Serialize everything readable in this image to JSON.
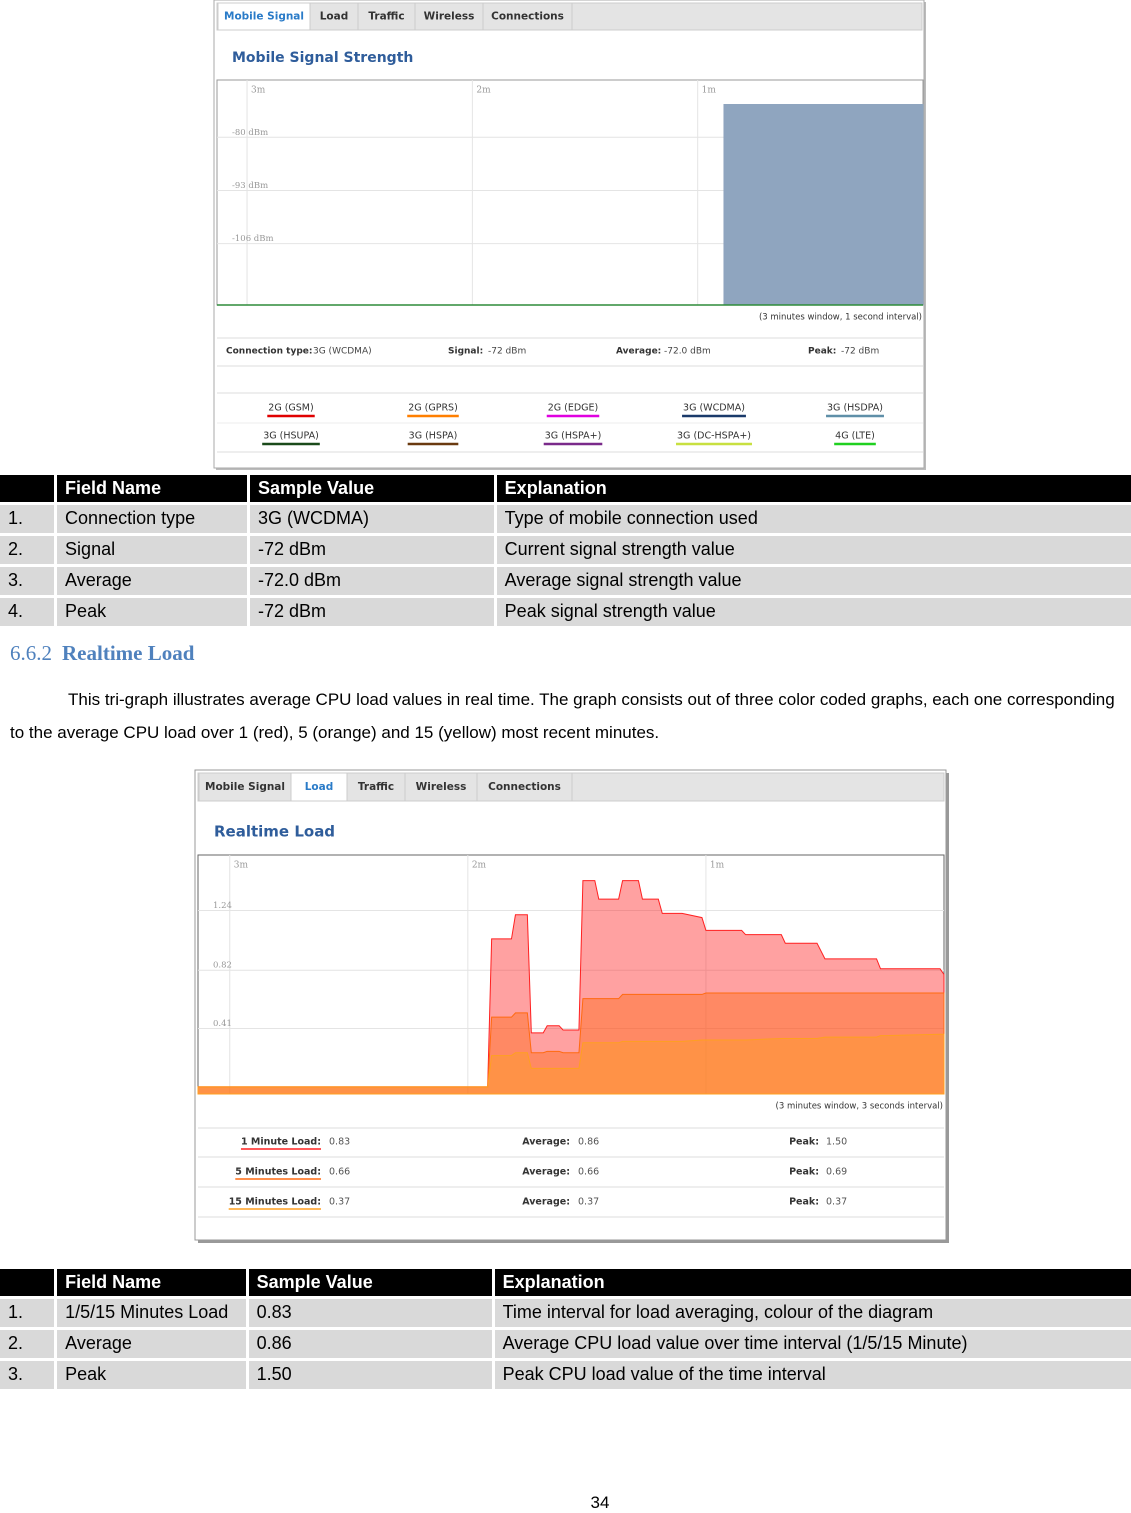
{
  "signal_screenshot": {
    "tabs": [
      "Mobile Signal",
      "Load",
      "Traffic",
      "Wireless",
      "Connections"
    ],
    "title": "Mobile Signal Strength",
    "chart": {
      "type": "area",
      "x": [
        -53,
        0
      ],
      "series": [
        {
          "color": "#8fa5bf",
          "values": [
            -72,
            -72
          ]
        }
      ],
      "xlim": [
        -188,
        0
      ],
      "ylim": [
        -121,
        -66
      ],
      "xticks": [
        {
          "value": -180,
          "label": "3m"
        },
        {
          "value": -120,
          "label": "2m"
        },
        {
          "value": -60,
          "label": "1m"
        }
      ],
      "yticks": [
        {
          "value": -80,
          "label": "-80 dBm"
        },
        {
          "value": -93,
          "label": "-93 dBm"
        },
        {
          "value": -106,
          "label": "-106 dBm"
        }
      ],
      "grid": true
    },
    "caption": "(3 minutes window, 1 second interval)",
    "info": [
      [
        "Connection type:",
        "3G (WCDMA)"
      ],
      [
        "Signal:",
        "-72 dBm"
      ],
      [
        "Average:",
        "-72.0 dBm"
      ],
      [
        "Peak:",
        "-72 dBm"
      ]
    ],
    "legend": [
      {
        "name": "2G (GSM)",
        "color": "#e00000"
      },
      {
        "name": "2G (GPRS)",
        "color": "#ff7f00"
      },
      {
        "name": "2G (EDGE)",
        "color": "#e000e0"
      },
      {
        "name": "3G (WCDMA)",
        "color": "#1a3a6a"
      },
      {
        "name": "3G (HSDPA)",
        "color": "#5f8fa8"
      },
      {
        "name": "3G (HSUPA)",
        "color": "#1a4a1a"
      },
      {
        "name": "3G (HSPA)",
        "color": "#6a3a10"
      },
      {
        "name": "3G (HSPA+)",
        "color": "#7a2a8a"
      },
      {
        "name": "3G (DC-HSPA+)",
        "color": "#c8e040"
      },
      {
        "name": "4G (LTE)",
        "color": "#20d020"
      }
    ]
  },
  "table_1": {
    "header": [
      "Field Name",
      "Sample Value",
      "Explanation"
    ],
    "rows": [
      [
        "1.",
        "Connection type",
        "3G (WCDMA)",
        "Type of mobile connection used"
      ],
      [
        "2.",
        "Signal",
        "-72 dBm",
        "Current signal strength value"
      ],
      [
        "3.",
        "Average",
        "-72.0 dBm",
        "Average signal strength value"
      ],
      [
        "4.",
        "Peak",
        "-72 dBm",
        "Peak signal strength value"
      ]
    ]
  },
  "section": {
    "number": "6.6.2",
    "title": "Realtime Load",
    "paragraph": "This tri-graph illustrates average CPU load values in real time. The graph consists out of three color coded graphs, each one corresponding to the average CPU load over 1 (red), 5 (orange) and 15 (yellow) most recent minutes."
  },
  "load_screenshot": {
    "tabs": [
      "Mobile Signal",
      "Load",
      "Traffic",
      "Wireless",
      "Connections"
    ],
    "title": "Realtime Load",
    "chart": {
      "type": "area",
      "x": [
        -188,
        -115,
        -114,
        -109,
        -108,
        -105,
        -104,
        -101,
        -100,
        -97,
        -96,
        -92,
        -91,
        -88,
        -87,
        -82,
        -81,
        -77,
        -76,
        -72,
        -71,
        -66,
        -61,
        -60,
        -51,
        -50,
        -41,
        -40,
        -32,
        -30,
        -17,
        -16,
        -1,
        0
      ],
      "series": [
        {
          "color": "#ff2020",
          "values": [
            0,
            0,
            1.04,
            1.04,
            1.21,
            1.21,
            0.38,
            0.38,
            0.43,
            0.43,
            0.4,
            0.4,
            1.45,
            1.45,
            1.32,
            1.32,
            1.45,
            1.45,
            1.32,
            1.32,
            1.22,
            1.22,
            1.19,
            1.1,
            1.1,
            1.07,
            1.07,
            1.01,
            1.01,
            0.9,
            0.9,
            0.83,
            0.83,
            0.79
          ]
        },
        {
          "color": "#ff6a10",
          "values": [
            0,
            0,
            0.49,
            0.49,
            0.52,
            0.52,
            0.24,
            0.24,
            0.25,
            0.25,
            0.24,
            0.24,
            0.62,
            0.62,
            0.62,
            0.62,
            0.65,
            0.65,
            0.65,
            0.65,
            0.65,
            0.65,
            0.65,
            0.66,
            0.66,
            0.66,
            0.66,
            0.66,
            0.66,
            0.66,
            0.66,
            0.66,
            0.66,
            0.66
          ]
        },
        {
          "color": "#ffa020",
          "values": [
            0,
            0,
            0.22,
            0.22,
            0.24,
            0.24,
            0.13,
            0.13,
            0.13,
            0.13,
            0.13,
            0.13,
            0.31,
            0.31,
            0.31,
            0.31,
            0.32,
            0.32,
            0.32,
            0.32,
            0.32,
            0.32,
            0.33,
            0.33,
            0.33,
            0.33,
            0.34,
            0.34,
            0.34,
            0.35,
            0.35,
            0.36,
            0.37,
            0.37
          ]
        }
      ],
      "xlim": [
        -188,
        0
      ],
      "ylim": [
        -0.05,
        1.63
      ],
      "xticks": [
        {
          "value": -180,
          "label": "3m"
        },
        {
          "value": -120,
          "label": "2m"
        },
        {
          "value": -60,
          "label": "1m"
        }
      ],
      "yticks": [
        1.24,
        0.82,
        0.41
      ],
      "grid": true
    },
    "caption": "(3 minutes window, 3 seconds interval)",
    "stats": [
      [
        "1 Minute Load:",
        "0.83",
        "Average:",
        "0.86",
        "Peak:",
        "1.50"
      ],
      [
        "5 Minutes Load:",
        "0.66",
        "Average:",
        "0.66",
        "Peak:",
        "0.69"
      ],
      [
        "15 Minutes Load:",
        "0.37",
        "Average:",
        "0.37",
        "Peak:",
        "0.37"
      ]
    ]
  },
  "table_2": {
    "header": [
      "Field Name",
      "Sample Value",
      "Explanation"
    ],
    "rows": [
      [
        "1.",
        "1/5/15 Minutes Load",
        "0.83",
        "Time interval for load averaging, colour of the diagram"
      ],
      [
        "2.",
        "Average",
        "0.86",
        "Average CPU load value over time interval (1/5/15 Minute)"
      ],
      [
        "3.",
        "Peak",
        "1.50",
        "Peak CPU load value of the time interval"
      ]
    ]
  },
  "page_number": "34"
}
